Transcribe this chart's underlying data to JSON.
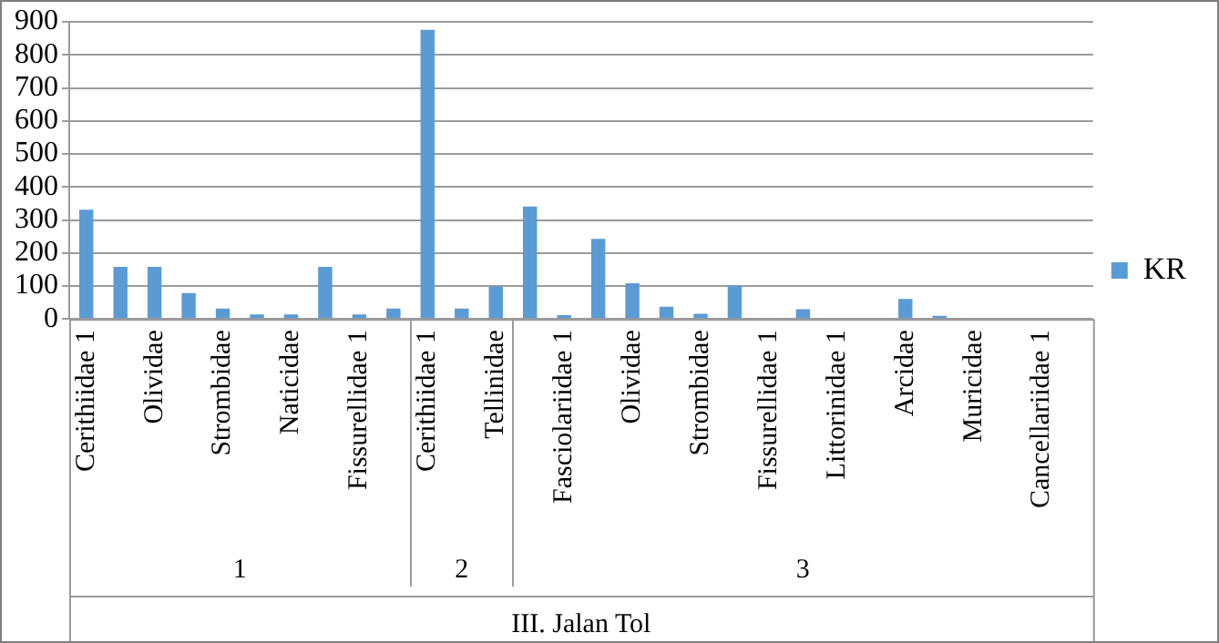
{
  "chart_data": {
    "type": "bar",
    "categories": [
      "Cerithiidae 1",
      null,
      "Olividae",
      null,
      "Strombidae",
      null,
      "Naticidae",
      null,
      "Fissurellidae 1",
      null,
      "Cerithiidae 1",
      null,
      "Tellinidae",
      null,
      "Fasciolariidae 1",
      null,
      "Olividae",
      null,
      "Strombidae",
      null,
      "Fissurellidae 1",
      null,
      "Littorinidae 1",
      null,
      "Arcidae",
      null,
      "Muricidae",
      null,
      "Cancellariidae 1",
      null
    ],
    "series": [
      {
        "name": "KR",
        "color": "#5b9bd5",
        "values": [
          331,
          158,
          158,
          79,
          32,
          14,
          14,
          158,
          14,
          32,
          876,
          32,
          99,
          341,
          12,
          243,
          108,
          37,
          16,
          101,
          0,
          30,
          0,
          0,
          61,
          10,
          0,
          0,
          0,
          0
        ]
      }
    ],
    "annotations": [
      "1",
      "2",
      "3",
      "III. Jalan Tol"
    ],
    "ylim": [
      0,
      900
    ],
    "yticks": [
      0,
      100,
      200,
      300,
      400,
      500,
      600,
      700,
      800,
      900
    ],
    "grid": "y",
    "legend": "right"
  }
}
